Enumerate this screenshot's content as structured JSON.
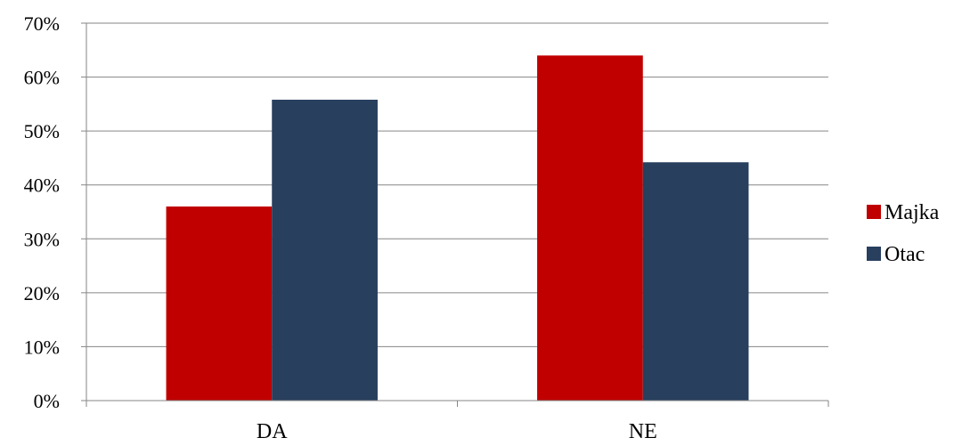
{
  "chart_data": {
    "type": "bar",
    "categories": [
      "DA",
      "NE"
    ],
    "series": [
      {
        "name": "Majka",
        "values": [
          36,
          64
        ],
        "color": "#c00000"
      },
      {
        "name": "Otac",
        "values": [
          55.8,
          44.2
        ],
        "color": "#283f5e"
      }
    ],
    "ylim": [
      0,
      70
    ],
    "yticks": [
      "0%",
      "10%",
      "20%",
      "30%",
      "40%",
      "50%",
      "60%",
      "70%"
    ],
    "value_format": "percent",
    "grid": true,
    "gridline_color": "#868686",
    "legend_position": "right"
  }
}
